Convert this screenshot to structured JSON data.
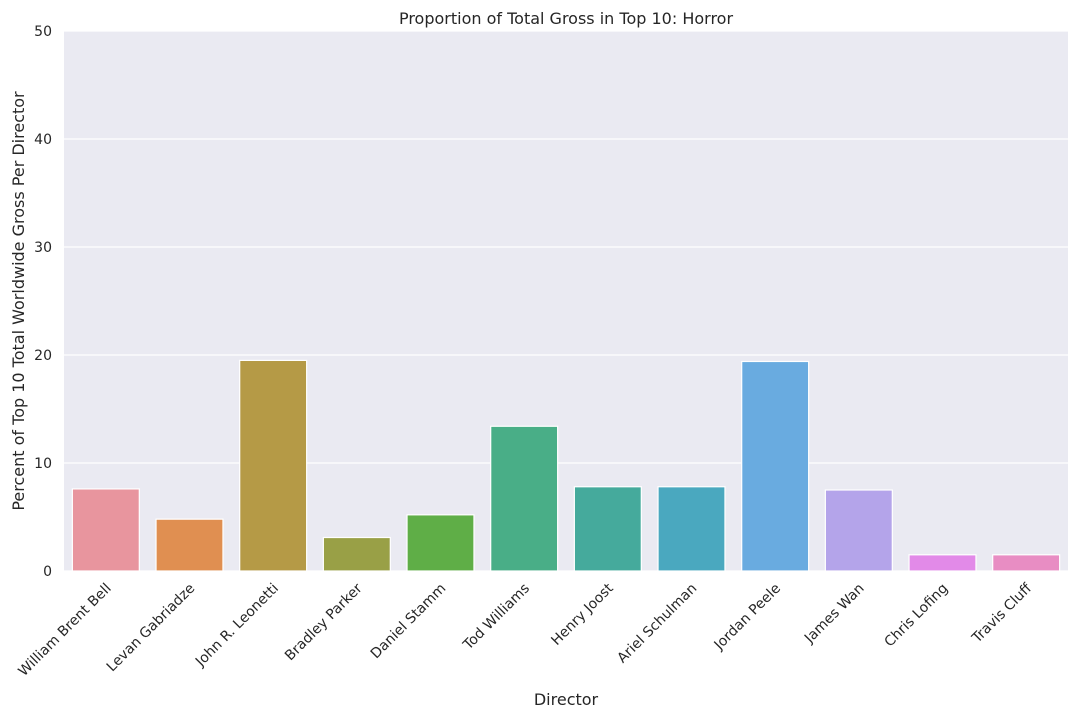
{
  "chart_data": {
    "type": "bar",
    "title": "Proportion of Total Gross in Top 10: Horror",
    "xlabel": "Director",
    "ylabel": "Percent of Top 10 Total Worldwide Gross Per Director",
    "ylim": [
      0,
      50
    ],
    "yticks": [
      0,
      10,
      20,
      30,
      40,
      50
    ],
    "grid": true,
    "categories": [
      "William Brent Bell",
      "Levan Gabriadze",
      "John R. Leonetti",
      "Bradley Parker",
      "Daniel Stamm",
      "Tod Williams",
      "Henry Joost",
      "Ariel Schulman",
      "Jordan Peele",
      "James Wan",
      "Chris Lofing",
      "Travis Cluff"
    ],
    "values": [
      7.6,
      4.8,
      19.5,
      3.1,
      5.2,
      13.4,
      7.8,
      7.8,
      19.4,
      7.5,
      1.5,
      1.5
    ],
    "colors": [
      "#e8959e",
      "#e08f51",
      "#b59a46",
      "#99a046",
      "#5fae47",
      "#49ae87",
      "#45aa9c",
      "#4aa8bf",
      "#69abe0",
      "#b4a4ea",
      "#e28ae8",
      "#e88dc3"
    ],
    "background": "#eaeaf2",
    "gridColor": "#ffffff"
  }
}
